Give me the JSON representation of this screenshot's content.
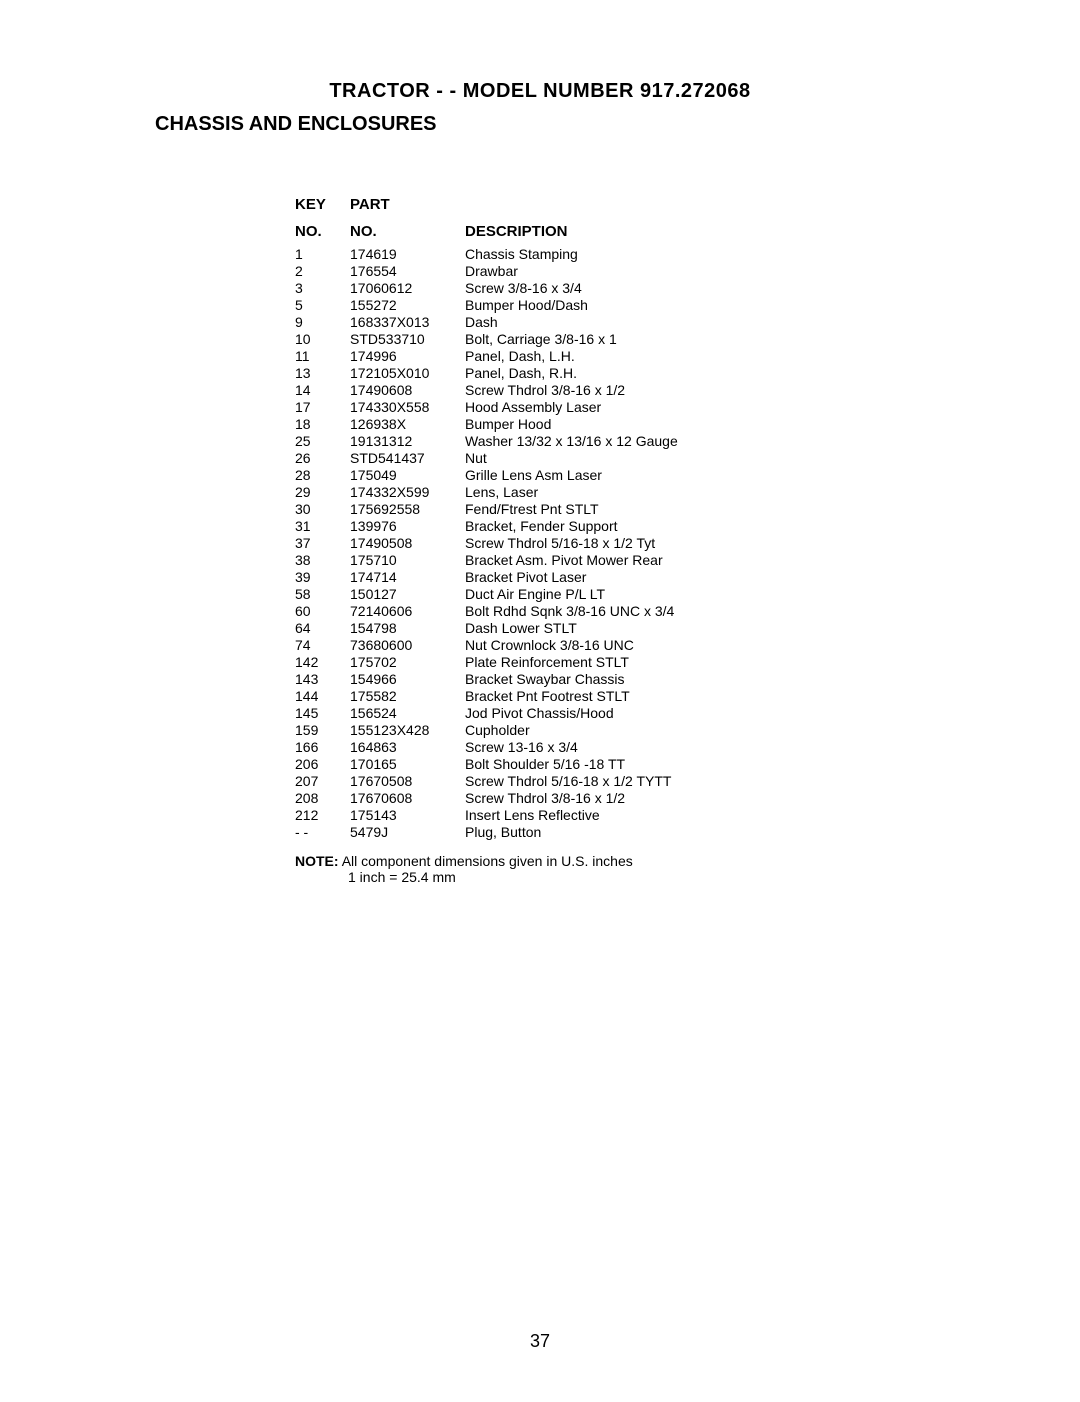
{
  "title": {
    "main": "TRACTOR - - MODEL NUMBER 917.272068",
    "sub": "CHASSIS AND ENCLOSURES"
  },
  "headers": {
    "key_line1": "KEY",
    "key_line2": "NO.",
    "part_line1": "PART",
    "part_line2": "NO.",
    "desc": "DESCRIPTION"
  },
  "parts": [
    {
      "key": "1",
      "part": "174619",
      "desc": "Chassis Stamping"
    },
    {
      "key": "2",
      "part": "176554",
      "desc": "Drawbar"
    },
    {
      "key": "3",
      "part": "17060612",
      "desc": "Screw  3/8-16 x 3/4"
    },
    {
      "key": "5",
      "part": "155272",
      "desc": "Bumper Hood/Dash"
    },
    {
      "key": "9",
      "part": "168337X013",
      "desc": "Dash"
    },
    {
      "key": "10",
      "part": "STD533710",
      "desc": "Bolt, Carriage  3/8-16 x 1"
    },
    {
      "key": "11",
      "part": "174996",
      "desc": "Panel, Dash, L.H."
    },
    {
      "key": "13",
      "part": "172105X010",
      "desc": "Panel, Dash, R.H."
    },
    {
      "key": "14",
      "part": "17490608",
      "desc": "Screw Thdrol 3/8-16 x 1/2"
    },
    {
      "key": "17",
      "part": "174330X558",
      "desc": "Hood Assembly Laser"
    },
    {
      "key": "18",
      "part": "126938X",
      "desc": "Bumper Hood"
    },
    {
      "key": "25",
      "part": "19131312",
      "desc": "Washer  13/32 x 13/16 x 12 Gauge"
    },
    {
      "key": "26",
      "part": "STD541437",
      "desc": "Nut"
    },
    {
      "key": "28",
      "part": "175049",
      "desc": "Grille Lens Asm Laser"
    },
    {
      "key": "29",
      "part": "174332X599",
      "desc": "Lens, Laser"
    },
    {
      "key": "30",
      "part": "175692558",
      "desc": "Fend/Ftrest Pnt STLT"
    },
    {
      "key": "31",
      "part": "139976",
      "desc": "Bracket, Fender Support"
    },
    {
      "key": "37",
      "part": "17490508",
      "desc": "Screw Thdrol  5/16-18 x 1/2 Tyt"
    },
    {
      "key": "38",
      "part": "175710",
      "desc": "Bracket  Asm. Pivot Mower Rear"
    },
    {
      "key": "39",
      "part": "174714",
      "desc": "Bracket Pivot Laser"
    },
    {
      "key": "58",
      "part": "150127",
      "desc": "Duct Air Engine P/L LT"
    },
    {
      "key": "60",
      "part": "72140606",
      "desc": "Bolt Rdhd Sqnk 3/8-16 UNC x 3/4"
    },
    {
      "key": "64",
      "part": "154798",
      "desc": "Dash Lower STLT"
    },
    {
      "key": "74",
      "part": "73680600",
      "desc": "Nut Crownlock 3/8-16 UNC"
    },
    {
      "key": "142",
      "part": "175702",
      "desc": "Plate Reinforcement STLT"
    },
    {
      "key": "143",
      "part": "154966",
      "desc": "Bracket Swaybar Chassis"
    },
    {
      "key": "144",
      "part": "175582",
      "desc": "Bracket Pnt Footrest STLT"
    },
    {
      "key": "145",
      "part": "156524",
      "desc": "Jod Pivot Chassis/Hood"
    },
    {
      "key": "159",
      "part": "155123X428",
      "desc": "Cupholder"
    },
    {
      "key": "166",
      "part": "164863",
      "desc": "Screw 13-16 x 3/4"
    },
    {
      "key": "206",
      "part": "170165",
      "desc": "Bolt  Shoulder 5/16 -18 TT"
    },
    {
      "key": "207",
      "part": "17670508",
      "desc": "Screw Thdrol  5/16-18 x 1/2 TYTT"
    },
    {
      "key": "208",
      "part": "17670608",
      "desc": "Screw Thdrol  3/8-16 x 1/2"
    },
    {
      "key": "212",
      "part": "175143",
      "desc": "Insert Lens Reflective"
    },
    {
      "key": "- -",
      "part": "5479J",
      "desc": "Plug, Button"
    }
  ],
  "note": {
    "label": "NOTE:",
    "text1": "All component dimensions given in U.S. inches",
    "text2": "1 inch = 25.4 mm"
  },
  "page_number": "37"
}
